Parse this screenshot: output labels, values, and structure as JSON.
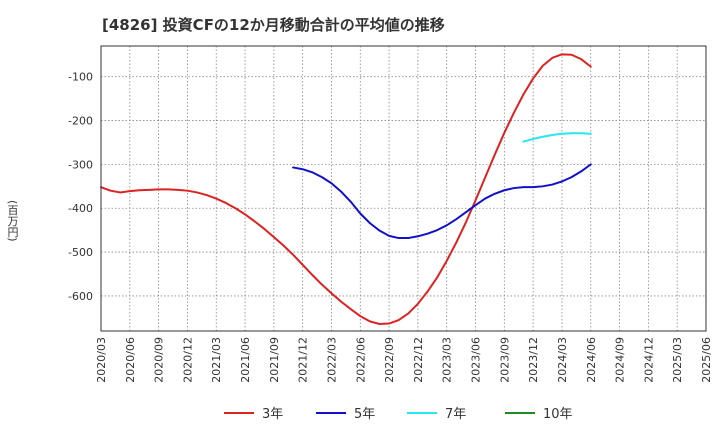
{
  "chart_data": {
    "type": "line",
    "title": "[4826]  投資CFの12か月移動合計の平均値の推移",
    "ylabel": "(百万円)",
    "xlabel": "",
    "x_ticks": [
      "2020/03",
      "2020/06",
      "2020/09",
      "2020/12",
      "2021/03",
      "2021/06",
      "2021/09",
      "2021/12",
      "2022/03",
      "2022/06",
      "2022/09",
      "2022/12",
      "2023/03",
      "2023/06",
      "2023/09",
      "2023/12",
      "2024/03",
      "2024/06",
      "2024/09",
      "2024/12",
      "2025/03",
      "2025/06"
    ],
    "y_ticks": [
      -600,
      -500,
      -400,
      -300,
      -200,
      -100
    ],
    "ylim": [
      -680,
      -30
    ],
    "grid": true,
    "legend_position": "bottom",
    "series": [
      {
        "name": "3年",
        "color": "#dd2222",
        "points": [
          [
            "2020/03",
            -352
          ],
          [
            "2020/04",
            -360
          ],
          [
            "2020/05",
            -364
          ],
          [
            "2020/06",
            -361
          ],
          [
            "2020/07",
            -359
          ],
          [
            "2020/08",
            -358
          ],
          [
            "2020/09",
            -357
          ],
          [
            "2020/10",
            -357
          ],
          [
            "2020/11",
            -358
          ],
          [
            "2020/12",
            -360
          ],
          [
            "2021/01",
            -364
          ],
          [
            "2021/02",
            -370
          ],
          [
            "2021/03",
            -378
          ],
          [
            "2021/04",
            -388
          ],
          [
            "2021/05",
            -400
          ],
          [
            "2021/06",
            -414
          ],
          [
            "2021/07",
            -430
          ],
          [
            "2021/08",
            -447
          ],
          [
            "2021/09",
            -466
          ],
          [
            "2021/10",
            -485
          ],
          [
            "2021/11",
            -506
          ],
          [
            "2021/12",
            -529
          ],
          [
            "2022/01",
            -552
          ],
          [
            "2022/02",
            -574
          ],
          [
            "2022/03",
            -594
          ],
          [
            "2022/04",
            -613
          ],
          [
            "2022/05",
            -630
          ],
          [
            "2022/06",
            -646
          ],
          [
            "2022/07",
            -658
          ],
          [
            "2022/08",
            -664
          ],
          [
            "2022/09",
            -663
          ],
          [
            "2022/10",
            -655
          ],
          [
            "2022/11",
            -640
          ],
          [
            "2022/12",
            -618
          ],
          [
            "2023/01",
            -590
          ],
          [
            "2023/02",
            -558
          ],
          [
            "2023/03",
            -520
          ],
          [
            "2023/04",
            -478
          ],
          [
            "2023/05",
            -432
          ],
          [
            "2023/06",
            -382
          ],
          [
            "2023/07",
            -330
          ],
          [
            "2023/08",
            -278
          ],
          [
            "2023/09",
            -228
          ],
          [
            "2023/10",
            -182
          ],
          [
            "2023/11",
            -140
          ],
          [
            "2023/12",
            -104
          ],
          [
            "2024/01",
            -75
          ],
          [
            "2024/02",
            -57
          ],
          [
            "2024/03",
            -49
          ],
          [
            "2024/04",
            -50
          ],
          [
            "2024/05",
            -60
          ],
          [
            "2024/06",
            -77
          ]
        ]
      },
      {
        "name": "5年",
        "color": "#1111cc",
        "points": [
          [
            "2021/11",
            -307
          ],
          [
            "2021/12",
            -311
          ],
          [
            "2022/01",
            -318
          ],
          [
            "2022/02",
            -329
          ],
          [
            "2022/03",
            -343
          ],
          [
            "2022/04",
            -362
          ],
          [
            "2022/05",
            -385
          ],
          [
            "2022/06",
            -412
          ],
          [
            "2022/07",
            -434
          ],
          [
            "2022/08",
            -451
          ],
          [
            "2022/09",
            -463
          ],
          [
            "2022/10",
            -468
          ],
          [
            "2022/11",
            -468
          ],
          [
            "2022/12",
            -464
          ],
          [
            "2023/01",
            -458
          ],
          [
            "2023/02",
            -450
          ],
          [
            "2023/03",
            -439
          ],
          [
            "2023/04",
            -425
          ],
          [
            "2023/05",
            -409
          ],
          [
            "2023/06",
            -393
          ],
          [
            "2023/07",
            -378
          ],
          [
            "2023/08",
            -367
          ],
          [
            "2023/09",
            -359
          ],
          [
            "2023/10",
            -354
          ],
          [
            "2023/11",
            -352
          ],
          [
            "2023/12",
            -352
          ],
          [
            "2024/01",
            -350
          ],
          [
            "2024/02",
            -346
          ],
          [
            "2024/03",
            -339
          ],
          [
            "2024/04",
            -329
          ],
          [
            "2024/05",
            -316
          ],
          [
            "2024/06",
            -300
          ]
        ]
      },
      {
        "name": "7年",
        "color": "#22e8f0",
        "points": [
          [
            "2023/11",
            -248
          ],
          [
            "2023/12",
            -242
          ],
          [
            "2024/01",
            -237
          ],
          [
            "2024/02",
            -233
          ],
          [
            "2024/03",
            -230
          ],
          [
            "2024/04",
            -229
          ],
          [
            "2024/05",
            -229
          ],
          [
            "2024/06",
            -230
          ]
        ]
      },
      {
        "name": "10年",
        "color": "#228822",
        "points": []
      }
    ]
  }
}
